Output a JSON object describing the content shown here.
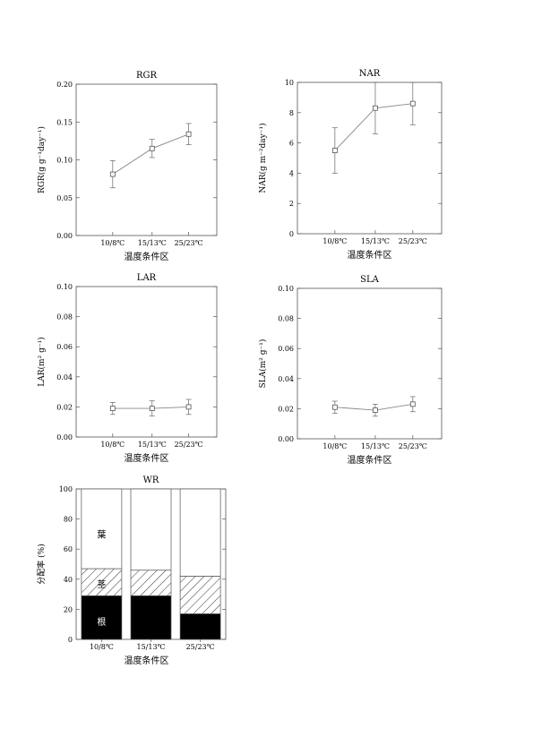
{
  "chart_data": [
    {
      "type": "line",
      "title": "RGR",
      "ylabel": "RGR(g g⁻¹day⁻¹)",
      "xlabel": "温度条件区",
      "categories": [
        "10/8℃",
        "15/13℃",
        "25/23℃"
      ],
      "series": [
        {
          "values": [
            0.081,
            0.115,
            0.134
          ],
          "error": [
            0.018,
            0.012,
            0.014
          ]
        }
      ],
      "ylim": [
        0,
        0.2
      ],
      "yticks": [
        "0.00",
        "0.05",
        "0.10",
        "0.15",
        "0.20"
      ],
      "marker": "square"
    },
    {
      "type": "line",
      "title": "NAR",
      "ylabel": "NAR(g m⁻²day⁻¹)",
      "xlabel": "温度条件区",
      "categories": [
        "10/8℃",
        "15/13℃",
        "25/23℃"
      ],
      "series": [
        {
          "values": [
            5.5,
            8.3,
            8.6
          ],
          "error": [
            1.5,
            1.7,
            1.4
          ]
        }
      ],
      "ylim": [
        0,
        10
      ],
      "yticks": [
        "0",
        "2",
        "4",
        "6",
        "8",
        "10"
      ],
      "marker": "square"
    },
    {
      "type": "line",
      "title": "LAR",
      "ylabel": "LAR(m² g⁻¹)",
      "xlabel": "温度条件区",
      "categories": [
        "10/8℃",
        "15/13℃",
        "25/23℃"
      ],
      "series": [
        {
          "values": [
            0.019,
            0.019,
            0.02
          ],
          "error": [
            0.004,
            0.005,
            0.005
          ]
        }
      ],
      "ylim": [
        0,
        0.1
      ],
      "yticks": [
        "0.00",
        "0.02",
        "0.04",
        "0.06",
        "0.08",
        "0.10"
      ],
      "marker": "square"
    },
    {
      "type": "line",
      "title": "SLA",
      "ylabel": "SLA(m² g⁻¹)",
      "xlabel": "温度条件区",
      "categories": [
        "10/8℃",
        "15/13℃",
        "25/23℃"
      ],
      "series": [
        {
          "values": [
            0.021,
            0.019,
            0.023
          ],
          "error": [
            0.004,
            0.004,
            0.005
          ]
        }
      ],
      "ylim": [
        0,
        0.1
      ],
      "yticks": [
        "0.00",
        "0.02",
        "0.04",
        "0.06",
        "0.08",
        "0.10"
      ],
      "marker": "square"
    },
    {
      "type": "bar",
      "stacked": true,
      "title": "WR",
      "ylabel": "分配率 (%)",
      "xlabel": "温度条件区",
      "categories": [
        "10/8℃",
        "15/13℃",
        "25/23℃"
      ],
      "series": [
        {
          "name": "根",
          "values": [
            29,
            29,
            17
          ],
          "fill": "#000000"
        },
        {
          "name": "茎",
          "values": [
            18,
            17,
            25
          ],
          "fill": "hatch"
        },
        {
          "name": "葉",
          "values": [
            53,
            54,
            58
          ],
          "fill": "#ffffff"
        }
      ],
      "ylim": [
        0,
        100
      ],
      "yticks": [
        "0",
        "20",
        "40",
        "60",
        "80",
        "100"
      ]
    }
  ]
}
